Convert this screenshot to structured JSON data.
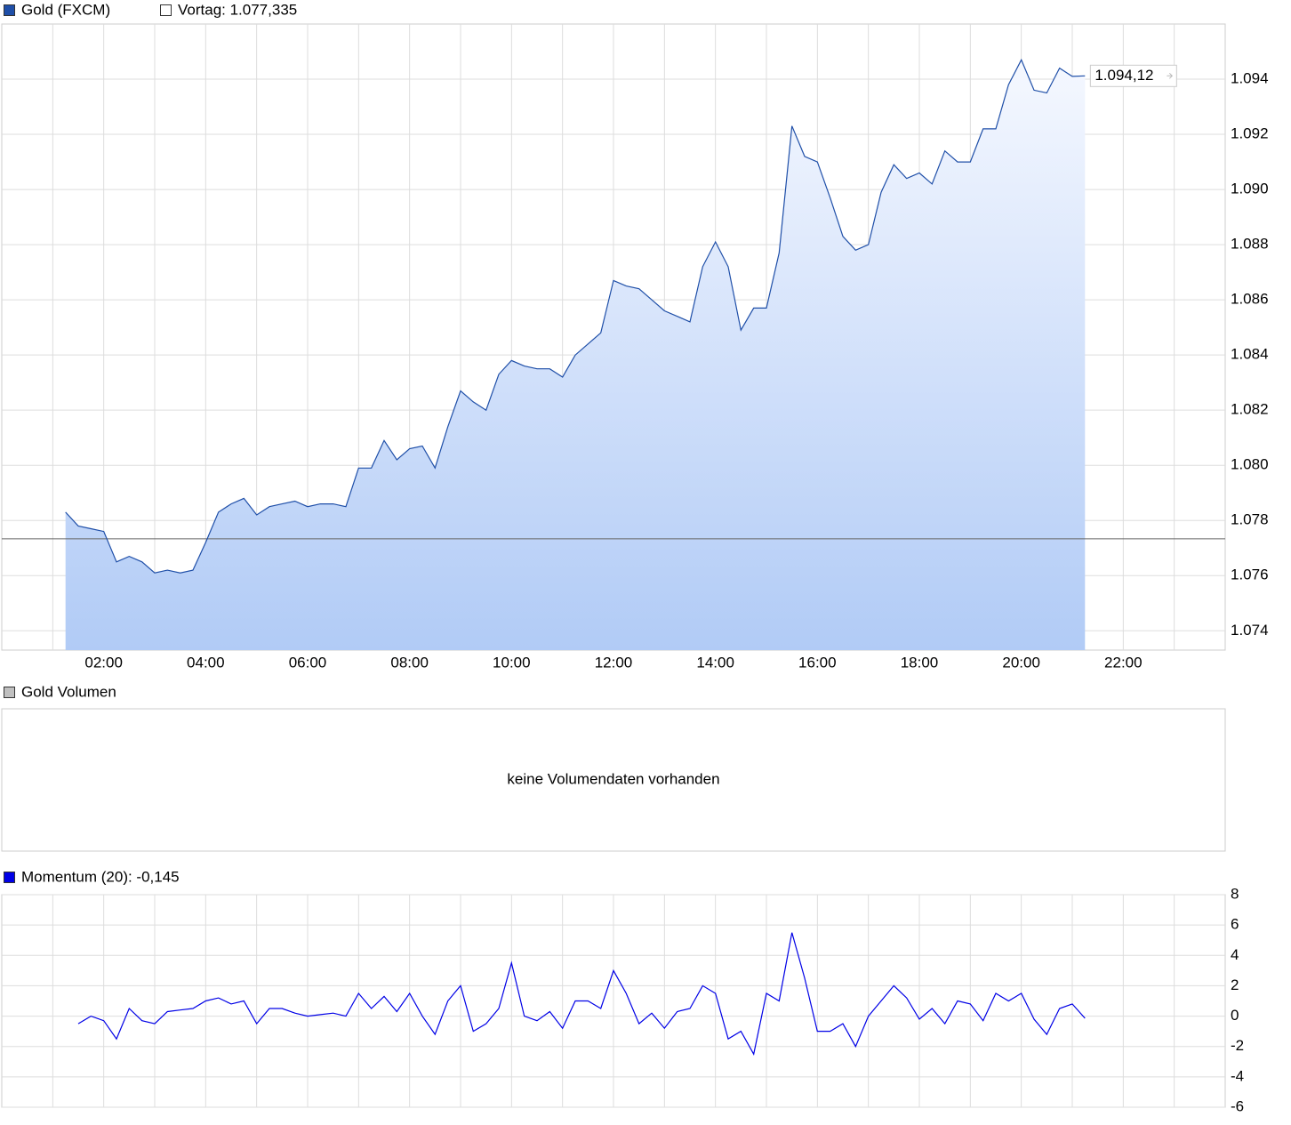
{
  "chart_data": [
    {
      "type": "area",
      "title": "Gold (FXCM)",
      "color": "#1f4fa8",
      "fill_top": "#f5f8ff",
      "fill_bottom": "#b1cbf6",
      "prev_close": {
        "value": 1077.335,
        "label": "Vortag: 1.077,335"
      },
      "last": {
        "value": 1094.12,
        "label": "1.094,12"
      },
      "x": [
        1.25,
        1.5,
        1.75,
        2,
        2.25,
        2.5,
        2.75,
        3,
        3.25,
        3.5,
        3.75,
        4,
        4.25,
        4.5,
        4.75,
        5,
        5.25,
        5.5,
        5.75,
        6,
        6.25,
        6.5,
        6.75,
        7,
        7.25,
        7.5,
        7.75,
        8,
        8.25,
        8.5,
        8.75,
        9,
        9.25,
        9.5,
        9.75,
        10,
        10.25,
        10.5,
        10.75,
        11,
        11.25,
        11.5,
        11.75,
        12,
        12.25,
        12.5,
        12.75,
        13,
        13.25,
        13.5,
        13.75,
        14,
        14.25,
        14.5,
        14.75,
        15,
        15.25,
        15.5,
        15.75,
        16,
        16.25,
        16.5,
        16.75,
        17,
        17.25,
        17.5,
        17.75,
        18,
        18.25,
        18.5,
        18.75,
        19,
        19.25,
        19.5,
        19.75,
        20,
        20.25,
        20.5,
        20.75,
        21,
        21.25
      ],
      "values": [
        1078.3,
        1077.8,
        1077.7,
        1077.6,
        1076.5,
        1076.7,
        1076.5,
        1076.1,
        1076.2,
        1076.1,
        1076.2,
        1077.2,
        1078.3,
        1078.6,
        1078.8,
        1078.2,
        1078.5,
        1078.6,
        1078.7,
        1078.5,
        1078.6,
        1078.6,
        1078.5,
        1079.9,
        1079.9,
        1080.9,
        1080.2,
        1080.6,
        1080.7,
        1079.9,
        1081.4,
        1082.7,
        1082.3,
        1082.0,
        1083.3,
        1083.8,
        1083.6,
        1083.5,
        1083.5,
        1083.2,
        1084.0,
        1084.4,
        1084.8,
        1086.7,
        1086.5,
        1086.4,
        1086.0,
        1085.6,
        1085.4,
        1085.2,
        1087.2,
        1088.1,
        1087.2,
        1084.9,
        1085.7,
        1085.7,
        1087.7,
        1092.3,
        1091.2,
        1091.0,
        1089.7,
        1088.3,
        1087.8,
        1088.0,
        1089.9,
        1090.9,
        1090.4,
        1090.6,
        1090.2,
        1091.4,
        1091.0,
        1091.0,
        1092.2,
        1092.2,
        1093.8,
        1094.7,
        1093.6,
        1093.5,
        1094.4,
        1094.1,
        1094.12
      ],
      "xlim": [
        0,
        24
      ],
      "xticks": [
        {
          "value": 2,
          "label": "02:00"
        },
        {
          "value": 4,
          "label": "04:00"
        },
        {
          "value": 6,
          "label": "06:00"
        },
        {
          "value": 8,
          "label": "08:00"
        },
        {
          "value": 10,
          "label": "10:00"
        },
        {
          "value": 12,
          "label": "12:00"
        },
        {
          "value": 14,
          "label": "14:00"
        },
        {
          "value": 16,
          "label": "16:00"
        },
        {
          "value": 18,
          "label": "18:00"
        },
        {
          "value": 20,
          "label": "20:00"
        },
        {
          "value": 22,
          "label": "22:00"
        }
      ],
      "xgrid": [
        1,
        3,
        5,
        7,
        9,
        11,
        13,
        15,
        17,
        19,
        21,
        23
      ],
      "ylim": [
        1073.3,
        1096
      ],
      "yticks": [
        {
          "value": 1074,
          "label": "1.074"
        },
        {
          "value": 1076,
          "label": "1.076"
        },
        {
          "value": 1078,
          "label": "1.078"
        },
        {
          "value": 1080,
          "label": "1.080"
        },
        {
          "value": 1082,
          "label": "1.082"
        },
        {
          "value": 1084,
          "label": "1.084"
        },
        {
          "value": 1086,
          "label": "1.086"
        },
        {
          "value": 1088,
          "label": "1.088"
        },
        {
          "value": 1090,
          "label": "1.090"
        },
        {
          "value": 1092,
          "label": "1.092"
        },
        {
          "value": 1094,
          "label": "1.094"
        }
      ],
      "grid": true
    },
    {
      "type": "empty",
      "title": "Gold Volumen",
      "message": "keine Volumendaten vorhanden",
      "color": "#c0c0c0"
    },
    {
      "type": "line",
      "title": "Momentum (20): -0,145",
      "color": "#0000e6",
      "x": [
        1.25,
        1.5,
        1.75,
        2,
        2.25,
        2.5,
        2.75,
        3,
        3.25,
        3.5,
        3.75,
        4,
        4.25,
        4.5,
        4.75,
        5,
        5.25,
        5.5,
        5.75,
        6,
        6.25,
        6.5,
        6.75,
        7,
        7.25,
        7.5,
        7.75,
        8,
        8.25,
        8.5,
        8.75,
        9,
        9.25,
        9.5,
        9.75,
        10,
        10.25,
        10.5,
        10.75,
        11,
        11.25,
        11.5,
        11.75,
        12,
        12.25,
        12.5,
        12.75,
        13,
        13.25,
        13.5,
        13.75,
        14,
        14.25,
        14.5,
        14.75,
        15,
        15.25,
        15.5,
        15.75,
        16,
        16.25,
        16.5,
        16.75,
        17,
        17.25,
        17.5,
        17.75,
        18,
        18.25,
        18.5,
        18.75,
        19,
        19.25,
        19.5,
        19.75,
        20,
        20.25,
        20.5,
        20.75,
        21,
        21.25
      ],
      "values": [
        null,
        -0.5,
        0,
        -0.3,
        -1.5,
        0.5,
        -0.3,
        -0.5,
        0.3,
        0.4,
        0.5,
        1.0,
        1.2,
        0.8,
        1.0,
        -0.5,
        0.5,
        0.5,
        0.2,
        0.0,
        0.1,
        0.2,
        0.0,
        1.5,
        0.5,
        1.3,
        0.3,
        1.5,
        0,
        -1.2,
        1.0,
        2.0,
        -1,
        -0.5,
        0.5,
        3.5,
        0.0,
        -0.3,
        0.3,
        -0.8,
        1.0,
        1.0,
        0.5,
        3.0,
        1.5,
        -0.5,
        0.2,
        -0.8,
        0.3,
        0.5,
        2.0,
        1.5,
        -1.5,
        -1.0,
        -2.5,
        1.5,
        1.0,
        5.5,
        2.5,
        -1,
        -1,
        -0.5,
        -2.0,
        0.0,
        1.0,
        2.0,
        1.2,
        -0.2,
        0.5,
        -0.5,
        1.0,
        0.8,
        -0.3,
        1.5,
        1.0,
        1.5,
        -0.2,
        -1.2,
        0.5,
        0.8,
        -0.145
      ],
      "xlim": [
        0,
        24
      ],
      "xgrid": [
        1,
        2,
        3,
        4,
        5,
        6,
        7,
        8,
        9,
        10,
        11,
        12,
        13,
        14,
        15,
        16,
        17,
        18,
        19,
        20,
        21,
        22,
        23
      ],
      "ylim": [
        -6,
        8
      ],
      "yticks": [
        -6,
        -4,
        -2,
        0,
        2,
        4,
        6,
        8
      ],
      "grid": true
    }
  ]
}
